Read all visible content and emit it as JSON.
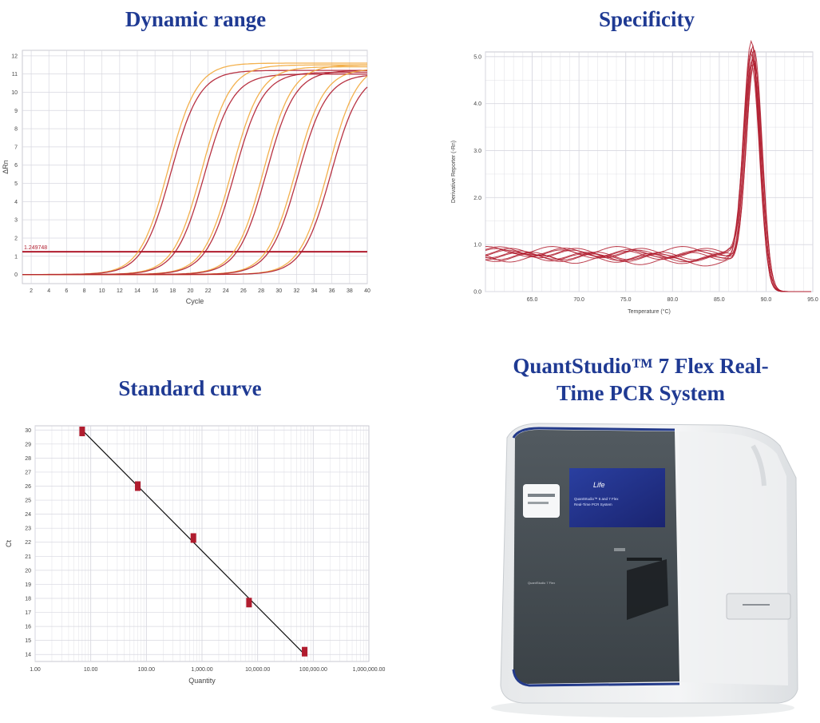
{
  "titles": {
    "dynamic": "Dynamic range",
    "specificity": "Specificity",
    "standard": "Standard curve",
    "instrument": "QuantStudio™ 7 Flex Real-Time PCR  System"
  },
  "colors": {
    "title": "#1f3a93",
    "curve_red": "#b01c2e",
    "curve_orange": "#f2a93b",
    "grid": "#d8d8e0"
  },
  "chart_data": [
    {
      "type": "line",
      "name_key": "amplification",
      "xlabel": "Cycle",
      "ylabel": "ΔRn",
      "xlim": [
        1,
        40
      ],
      "ylim": [
        -0.5,
        12.3
      ],
      "x_ticks": [
        2,
        4,
        6,
        8,
        10,
        12,
        14,
        16,
        18,
        20,
        22,
        24,
        26,
        28,
        30,
        32,
        34,
        36,
        38,
        40
      ],
      "y_ticks": [
        0,
        1,
        2,
        3,
        4,
        5,
        6,
        7,
        8,
        9,
        10,
        11,
        12
      ],
      "threshold": {
        "value": 1.25,
        "label": "1.249748"
      },
      "series": [
        {
          "midpoint": 17.5,
          "plateau": 11.6,
          "slope": 0.62
        },
        {
          "midpoint": 17.8,
          "plateau": 11.2,
          "slope": 0.62
        },
        {
          "midpoint": 21.3,
          "plateau": 11.5,
          "slope": 0.62
        },
        {
          "midpoint": 21.6,
          "plateau": 11.0,
          "slope": 0.62
        },
        {
          "midpoint": 24.7,
          "plateau": 11.4,
          "slope": 0.62
        },
        {
          "midpoint": 25.0,
          "plateau": 11.1,
          "slope": 0.62
        },
        {
          "midpoint": 28.3,
          "plateau": 11.5,
          "slope": 0.62
        },
        {
          "midpoint": 28.6,
          "plateau": 11.2,
          "slope": 0.62
        },
        {
          "midpoint": 31.9,
          "plateau": 11.3,
          "slope": 0.62
        },
        {
          "midpoint": 32.2,
          "plateau": 11.0,
          "slope": 0.62
        },
        {
          "midpoint": 35.6,
          "plateau": 11.6,
          "slope": 0.62
        },
        {
          "midpoint": 35.9,
          "plateau": 11.1,
          "slope": 0.62
        }
      ]
    },
    {
      "type": "line",
      "name_key": "melt",
      "xlabel": "Temperature (°C)",
      "ylabel": "Derivative Reporter (-Rn)",
      "xlim": [
        60,
        95
      ],
      "ylim": [
        0,
        5.1
      ],
      "x_ticks": [
        65,
        70,
        75,
        80,
        85,
        90,
        95
      ],
      "y_ticks": [
        0,
        1,
        2,
        3,
        4,
        5
      ],
      "x_tick_labels": [
        "65.0",
        "70.0",
        "75.0",
        "80.0",
        "85.0",
        "90.0",
        "95.0"
      ],
      "y_tick_labels": [
        "0.0",
        "1.0",
        "2.0",
        "3.0",
        "4.0",
        "5.0"
      ],
      "peak_temperature": 88.6,
      "curve_count": 10
    },
    {
      "type": "scatter",
      "name_key": "standard",
      "xlabel": "Quantity",
      "ylabel": "Ct",
      "log_x": true,
      "xlim": [
        1,
        1000000
      ],
      "ylim": [
        13.5,
        30.3
      ],
      "x_ticks": [
        1,
        10,
        100,
        1000,
        10000,
        100000,
        1000000
      ],
      "x_tick_labels": [
        "1.00",
        "10.00",
        "100.00",
        "1,000.00",
        "10,000.00",
        "100,000.00",
        "1,000,000.00"
      ],
      "y_ticks": [
        14,
        15,
        16,
        17,
        18,
        19,
        20,
        21,
        22,
        23,
        24,
        25,
        26,
        27,
        28,
        29,
        30
      ],
      "points": [
        {
          "x": 7,
          "y": 29.9
        },
        {
          "x": 70,
          "y": 26.0
        },
        {
          "x": 700,
          "y": 22.3
        },
        {
          "x": 7000,
          "y": 17.7
        },
        {
          "x": 70000,
          "y": 14.2
        }
      ],
      "fit": {
        "x": [
          7,
          70000
        ],
        "y": [
          30.0,
          14.0
        ]
      }
    }
  ],
  "instrument": {
    "brand": "Life",
    "screen_line1": "QuantStudio™ 6 and 7 Flex",
    "screen_line2": "Real-Time PCR System",
    "badge": "QuantStudio 7 Flex"
  }
}
